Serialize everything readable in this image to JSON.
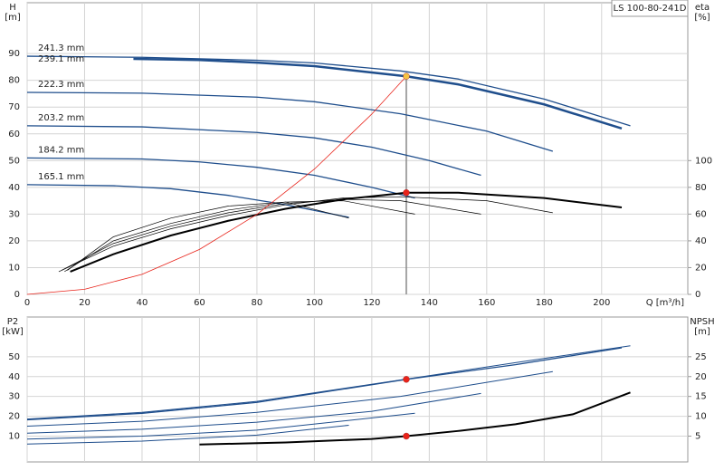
{
  "chart_data": [
    {
      "type": "line",
      "title": "LS 100-80-241D",
      "x_label": "Q [m³/h]",
      "y_label": "H",
      "y_unit": "[m]",
      "y2_label": "eta",
      "y2_unit": "[%]",
      "xlim": [
        0,
        230
      ],
      "xticks": [
        0,
        20,
        40,
        60,
        80,
        100,
        120,
        140,
        160,
        180,
        200
      ],
      "ylim": [
        0,
        109
      ],
      "yticks": [
        0,
        10,
        20,
        30,
        40,
        50,
        60,
        70,
        80,
        90
      ],
      "y2lim": [
        0,
        218
      ],
      "y2ticks": [
        0,
        20,
        40,
        60,
        80,
        100
      ],
      "grid": true,
      "vline": 132,
      "series": [
        {
          "name": "241.3 mm",
          "color": "#1f4e8c",
          "line_width": 1.3,
          "x": [
            0,
            40,
            80,
            100,
            130,
            150,
            180,
            210
          ],
          "values": [
            89,
            88.6,
            87.5,
            86.5,
            83.5,
            80.5,
            73,
            63
          ]
        },
        {
          "name": "239.1 mm",
          "color": "#1f4e8c",
          "line_width": 2.5,
          "x": [
            37,
            60,
            80,
            100,
            132,
            150,
            180,
            207
          ],
          "values": [
            88,
            87.6,
            86.6,
            85.3,
            81.5,
            78.5,
            71,
            62
          ]
        },
        {
          "name": "222.3 mm",
          "color": "#1f4e8c",
          "line_width": 1.3,
          "x": [
            0,
            40,
            80,
            100,
            130,
            160,
            183
          ],
          "values": [
            75.5,
            75.2,
            73.7,
            72,
            67.5,
            61,
            53.5
          ]
        },
        {
          "name": "203.2 mm",
          "color": "#1f4e8c",
          "line_width": 1.3,
          "x": [
            0,
            40,
            80,
            100,
            120,
            140,
            158
          ],
          "values": [
            63,
            62.6,
            60.5,
            58.5,
            55,
            50,
            44.5
          ]
        },
        {
          "name": "184.2 mm",
          "color": "#1f4e8c",
          "line_width": 1.3,
          "x": [
            0,
            40,
            60,
            80,
            100,
            120,
            135
          ],
          "values": [
            51,
            50.6,
            49.5,
            47.5,
            44.5,
            40,
            36
          ]
        },
        {
          "name": "165.1 mm",
          "color": "#1f4e8c",
          "line_width": 1.3,
          "x": [
            0,
            30,
            50,
            70,
            90,
            112
          ],
          "values": [
            41,
            40.6,
            39.5,
            37,
            33.5,
            28.8
          ]
        },
        {
          "color": "#000000",
          "line_width": 2,
          "axis": "y2",
          "x": [
            15,
            30,
            50,
            70,
            90,
            110,
            132,
            150,
            180,
            207
          ],
          "values": [
            17,
            30,
            44,
            55,
            64,
            71,
            76,
            76,
            72,
            65
          ]
        },
        {
          "color": "#000000",
          "line_width": 0.7,
          "axis": "y2",
          "x": [
            11,
            30,
            50,
            70,
            90,
            110,
            130,
            160,
            183
          ],
          "values": [
            17,
            36,
            49,
            59,
            67,
            72,
            73,
            70,
            61
          ]
        },
        {
          "color": "#000000",
          "line_width": 0.7,
          "axis": "y2",
          "x": [
            12,
            30,
            50,
            70,
            90,
            110,
            130,
            158
          ],
          "values": [
            18,
            38,
            51,
            61,
            68,
            71,
            70,
            60
          ]
        },
        {
          "color": "#000000",
          "line_width": 0.7,
          "axis": "y2",
          "x": [
            13,
            30,
            50,
            70,
            90,
            110,
            135
          ],
          "values": [
            17,
            40,
            53,
            63,
            69,
            70,
            60
          ]
        },
        {
          "color": "#000000",
          "line_width": 0.7,
          "axis": "y2",
          "x": [
            14,
            30,
            50,
            70,
            90,
            112
          ],
          "values": [
            18,
            43,
            57,
            66,
            69,
            57
          ]
        },
        {
          "color": "#e8231a",
          "line_width": 0.8,
          "x": [
            0,
            20,
            40,
            60,
            80,
            100,
            120,
            132
          ],
          "values": [
            0,
            1.9,
            7.5,
            16.8,
            29.9,
            46.8,
            67.4,
            81.5
          ]
        }
      ],
      "markers": [
        {
          "x": 132,
          "y": 81.5,
          "color": "#f5c242"
        },
        {
          "x": 132,
          "y": 76,
          "axis": "y2",
          "color": "#e8231a"
        }
      ]
    },
    {
      "type": "line",
      "y_label": "P2",
      "y_unit": "[kW]",
      "y2_label": "NPSH",
      "y2_unit": "[m]",
      "xlim": [
        0,
        230
      ],
      "ylim": [
        -3,
        70
      ],
      "yticks": [
        10,
        20,
        30,
        40,
        50
      ],
      "y2lim": [
        -1.5,
        35
      ],
      "y2ticks": [
        5,
        10,
        15,
        20,
        25
      ],
      "grid": true,
      "series": [
        {
          "color": "#1f4e8c",
          "line_width": 1,
          "x": [
            0,
            40,
            80,
            130,
            170,
            210
          ],
          "values": [
            18.6,
            22,
            27.5,
            38.3,
            47,
            55.5
          ]
        },
        {
          "color": "#1f4e8c",
          "line_width": 1.3,
          "x": [
            0,
            40,
            80,
            132,
            170,
            207
          ],
          "values": [
            18.2,
            21.5,
            27,
            38.6,
            46,
            54.5
          ]
        },
        {
          "color": "#1f4e8c",
          "line_width": 1,
          "x": [
            0,
            40,
            80,
            130,
            183
          ],
          "values": [
            15,
            17.5,
            22,
            30,
            42.5
          ]
        },
        {
          "color": "#1f4e8c",
          "line_width": 1,
          "x": [
            0,
            40,
            80,
            120,
            158
          ],
          "values": [
            11.5,
            13.5,
            17,
            22.5,
            31.5
          ]
        },
        {
          "color": "#1f4e8c",
          "line_width": 1,
          "x": [
            0,
            40,
            80,
            135
          ],
          "values": [
            8.5,
            10,
            13,
            21.5
          ]
        },
        {
          "color": "#1f4e8c",
          "line_width": 1,
          "x": [
            0,
            40,
            80,
            112
          ],
          "values": [
            6,
            7.5,
            10.5,
            15.5
          ]
        },
        {
          "color": "#000000",
          "line_width": 2,
          "axis": "y2",
          "x": [
            60,
            90,
            120,
            132,
            150,
            170,
            190,
            210
          ],
          "values": [
            2.9,
            3.4,
            4.3,
            5,
            6.3,
            8,
            10.5,
            16
          ]
        }
      ],
      "markers": [
        {
          "x": 132,
          "y": 38.6,
          "color": "#e8231a"
        },
        {
          "x": 132,
          "y": 5,
          "axis": "y2",
          "color": "#e8231a"
        }
      ]
    }
  ]
}
